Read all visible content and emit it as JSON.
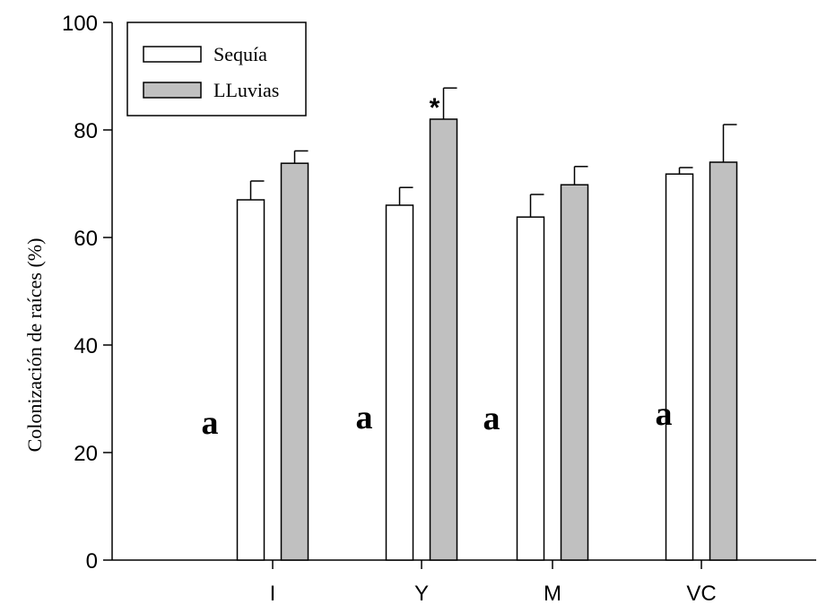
{
  "chart_data": {
    "type": "bar",
    "title": "",
    "xlabel": "",
    "ylabel": "Colonización de raíces (%)",
    "ylim": [
      0,
      100
    ],
    "yticks": [
      0,
      20,
      40,
      60,
      80,
      100
    ],
    "categories": [
      "I",
      "Y",
      "M",
      "VC"
    ],
    "series": [
      {
        "name": "Sequía",
        "color": "#ffffff",
        "values": [
          67,
          66,
          63.8,
          71.8
        ],
        "errors": [
          3.5,
          3.3,
          4.2,
          1.2
        ]
      },
      {
        "name": "LLuvias",
        "color": "#c0c0c0",
        "values": [
          73.8,
          82,
          69.8,
          74
        ],
        "errors": [
          2.3,
          5.8,
          3.4,
          7
        ]
      }
    ],
    "legend": "top-left",
    "grid": false,
    "annotations": [
      {
        "text": "a",
        "category": "I"
      },
      {
        "text": "a",
        "category": "Y"
      },
      {
        "text": "a",
        "category": "M"
      },
      {
        "text": "a",
        "category": "VC"
      },
      {
        "text": "*",
        "category": "Y",
        "series": "LLuvias"
      }
    ]
  }
}
